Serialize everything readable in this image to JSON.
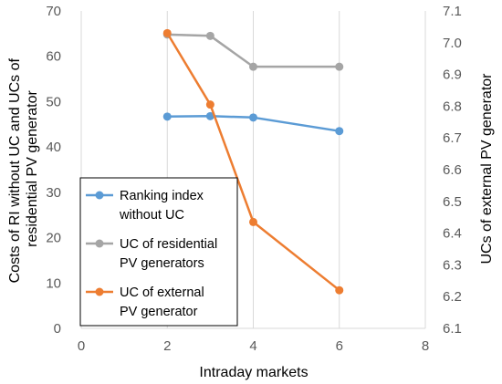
{
  "chart_data": {
    "type": "line",
    "xlabel": "Intraday markets",
    "ylabel_left": [
      "Costs of RI without UC and UCs of",
      "residential PV generator"
    ],
    "ylabel_right": "UCs of external PV generator",
    "xlim": [
      0,
      8
    ],
    "xticks": [
      0,
      2,
      4,
      6,
      8
    ],
    "ylim_left": [
      0,
      70
    ],
    "yticks_left": [
      0,
      10,
      20,
      30,
      40,
      50,
      60,
      70
    ],
    "ylim_right": [
      6.1,
      7.1
    ],
    "yticks_right": [
      "6.1",
      "6.2",
      "6.3",
      "6.4",
      "6.5",
      "6.6",
      "6.7",
      "6.8",
      "6.9",
      "7.0",
      "7.1"
    ],
    "grid": "vertical",
    "legend_position": "bottom-left",
    "series": [
      {
        "name": [
          "Ranking index",
          "without UC"
        ],
        "axis": "left",
        "color": "#5B9BD5",
        "x": [
          2,
          3,
          4,
          6
        ],
        "y": [
          46.7,
          46.8,
          46.5,
          43.5
        ]
      },
      {
        "name": [
          "UC of residential",
          "PV generators"
        ],
        "axis": "left",
        "color": "#A5A5A5",
        "x": [
          2,
          3,
          4,
          6
        ],
        "y": [
          64.8,
          64.5,
          57.7,
          57.7
        ]
      },
      {
        "name": [
          "UC of external",
          "PV generator"
        ],
        "axis": "right",
        "color": "#ED7D31",
        "x": [
          2,
          3,
          4,
          6
        ],
        "y": [
          7.03,
          6.805,
          6.435,
          6.22
        ]
      }
    ]
  }
}
